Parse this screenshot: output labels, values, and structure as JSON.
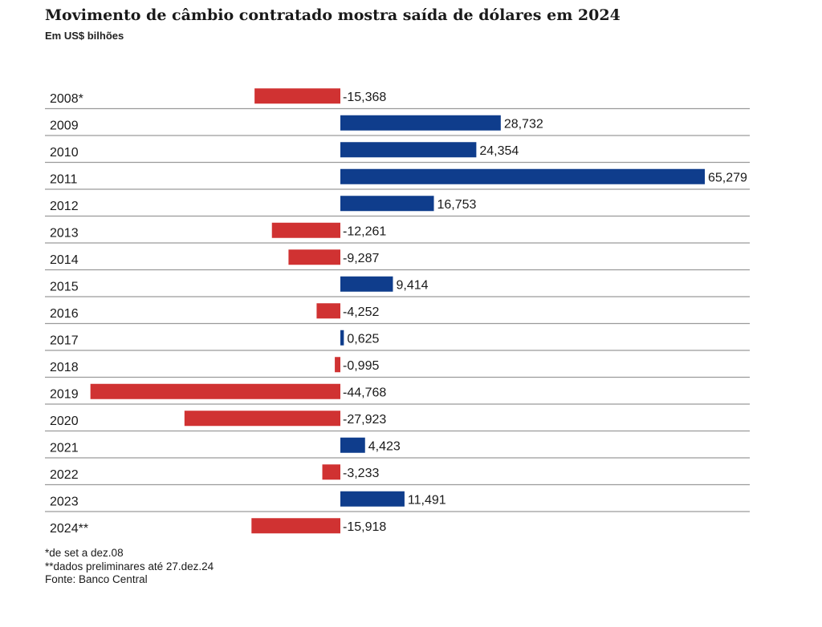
{
  "title": "Movimento de câmbio contratado mostra saída de dólares em 2024",
  "subtitle": "Em US$ bilhões",
  "colors": {
    "positive": "#0f3d8c",
    "negative": "#d03232",
    "gridline": "#9a9a9a"
  },
  "chart_data": {
    "type": "bar",
    "orientation": "horizontal",
    "categories": [
      "2008*",
      "2009",
      "2010",
      "2011",
      "2012",
      "2013",
      "2014",
      "2015",
      "2016",
      "2017",
      "2018",
      "2019",
      "2020",
      "2021",
      "2022",
      "2023",
      "2024**"
    ],
    "values": [
      -15.368,
      28.732,
      24.354,
      65.279,
      16.753,
      -12.261,
      -9.287,
      9.414,
      -4.252,
      0.625,
      -0.995,
      -44.768,
      -27.923,
      4.423,
      -3.233,
      11.491,
      -15.918
    ],
    "labels": [
      "-15,368",
      "28,732",
      "24,354",
      "65,279",
      "16,753",
      "-12,261",
      "-9,287",
      "9,414",
      "-4,252",
      "0,625",
      "-0,995",
      "-44,768",
      "-27,923",
      "4,423",
      "-3,233",
      "11,491",
      "-15,918"
    ],
    "title": "Movimento de câmbio contratado mostra saída de dólares em 2024",
    "unit": "Em US$ bilhões",
    "legend": "none"
  },
  "notes": [
    "*de set a dez.08",
    "**dados preliminares até 27.dez.24",
    "Fonte: Banco Central"
  ]
}
